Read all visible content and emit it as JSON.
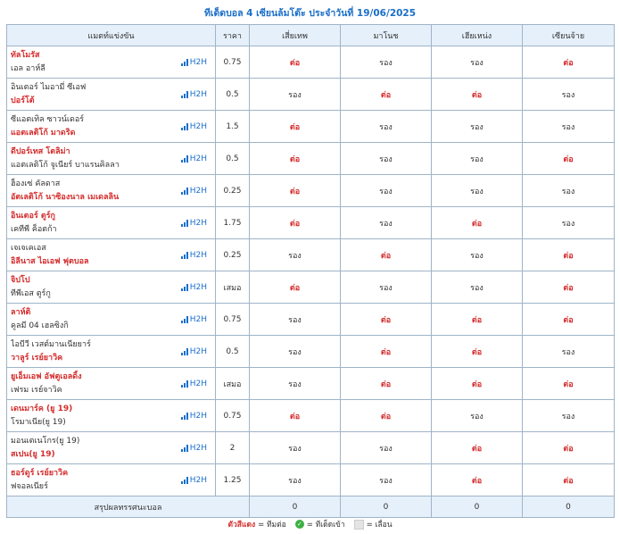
{
  "title": "ทีเด็ดบอล 4 เซียนล้มโต๊ะ ประจำวันที่ 19/06/2025",
  "header": {
    "match": "แมตท์แข่งขัน",
    "price": "ราคา",
    "experts": [
      "เสี่ยเทพ",
      "มาโนช",
      "เฮียเหน่ง",
      "เซียนจ้าย"
    ]
  },
  "h2h_label": "H2H",
  "matches": [
    {
      "home": "ทัลโมรัส",
      "away": "เอล อาห์ลี",
      "fav": "home",
      "price": "0.75",
      "picks": [
        "ต่อ",
        "รอง",
        "รอง",
        "ต่อ"
      ]
    },
    {
      "home": "อินเตอร์ ไมอามี่ ซีเอฟ",
      "away": "ปอร์โต้",
      "fav": "away",
      "price": "0.5",
      "picks": [
        "รอง",
        "ต่อ",
        "ต่อ",
        "รอง"
      ]
    },
    {
      "home": "ซีแอตเทิล ซาวน์เดอร์",
      "away": "แอตเลติโก้ มาดริด",
      "fav": "away",
      "price": "1.5",
      "picks": [
        "ต่อ",
        "รอง",
        "รอง",
        "รอง"
      ]
    },
    {
      "home": "ดีปอร์เทส โตลิม่า",
      "away": "แอตเลติโก้ จูเนียร์ บาแรนคิลลา",
      "fav": "home",
      "price": "0.5",
      "picks": [
        "ต่อ",
        "รอง",
        "รอง",
        "ต่อ"
      ]
    },
    {
      "home": "ฮ็องเซ่ คัลดาส",
      "away": "อัตเลติโก้ นาซิองนาล เมเดลลิน",
      "fav": "away",
      "price": "0.25",
      "picks": [
        "ต่อ",
        "รอง",
        "รอง",
        "รอง"
      ]
    },
    {
      "home": "อินเตอร์ ตูร์กู",
      "away": "เคทีพี ค็อตก้า",
      "fav": "home",
      "price": "1.75",
      "picks": [
        "ต่อ",
        "รอง",
        "ต่อ",
        "รอง"
      ]
    },
    {
      "home": "เจเจเคเอส",
      "away": "อิลีนาส ไอเอฟ ฟุตบอล",
      "fav": "away",
      "price": "0.25",
      "picks": [
        "รอง",
        "ต่อ",
        "รอง",
        "ต่อ"
      ]
    },
    {
      "home": "จิปโป",
      "away": "ทีพีเอส ตูร์กู",
      "fav": "home",
      "price": "เสมอ",
      "picks": [
        "ต่อ",
        "รอง",
        "รอง",
        "ต่อ"
      ]
    },
    {
      "home": "ลาห์ติ",
      "away": "คูลมี 04 เฮลซิงกิ",
      "fav": "home",
      "price": "0.75",
      "picks": [
        "รอง",
        "ต่อ",
        "ต่อ",
        "ต่อ"
      ]
    },
    {
      "home": "ไอบีวี เวสต์มานเนียยาร์",
      "away": "วาลูร์ เรย์ยาวิค",
      "fav": "away",
      "price": "0.5",
      "picks": [
        "รอง",
        "ต่อ",
        "ต่อ",
        "รอง"
      ]
    },
    {
      "home": "ยูเอ็มเอฟ อัฟตูเอลดิ้ง",
      "away": "เฟรม เรย์จาวิค",
      "fav": "home",
      "price": "เสมอ",
      "picks": [
        "รอง",
        "ต่อ",
        "ต่อ",
        "ต่อ"
      ]
    },
    {
      "home": "เดนมาร์ค (ยู 19)",
      "away": "โรมาเนีย(ยู 19)",
      "fav": "home",
      "price": "0.75",
      "picks": [
        "ต่อ",
        "ต่อ",
        "รอง",
        "รอง"
      ]
    },
    {
      "home": "มอนเตเนโกร(ยู 19)",
      "away": "สเปน(ยู 19)",
      "fav": "away",
      "price": "2",
      "picks": [
        "รอง",
        "รอง",
        "ต่อ",
        "ต่อ"
      ]
    },
    {
      "home": "ธอร์ดูร์ เรย์ยาวิค",
      "away": "ฟจอลเนียร์",
      "fav": "home",
      "price": "1.25",
      "picks": [
        "รอง",
        "รอง",
        "ต่อ",
        "ต่อ"
      ]
    }
  ],
  "summary": {
    "label": "สรุปผลทรรศนะบอล",
    "scores": [
      "0",
      "0",
      "0",
      "0"
    ]
  },
  "legend": {
    "red_text": "ตัวสีแดง",
    "red_desc": "= ทีมต่อ",
    "check_desc": "= ทีเด็ดเข้า",
    "gray_desc": "= เลื่อน"
  },
  "colors": {
    "favorite": "#d42d2d",
    "accent": "#1a6fc9",
    "header_bg": "#e6f0fa",
    "check": "#3cb043"
  },
  "icons": {
    "h2h": "signal-bars-icon",
    "check": "check-circle-icon"
  }
}
